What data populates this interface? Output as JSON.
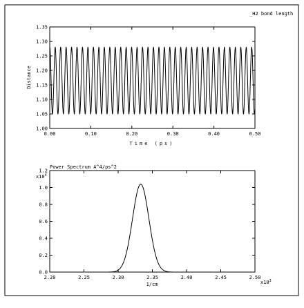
{
  "window_title": "_H2 bond length",
  "chart_data": [
    {
      "type": "line",
      "title": "",
      "xlabel": "Time (ps)",
      "ylabel": "Distance",
      "xlim": [
        0.0,
        0.5
      ],
      "ylim": [
        1.0,
        1.35
      ],
      "x_ticks": [
        "0.00",
        "0.10",
        "0.20",
        "0.30",
        "0.40",
        "0.50"
      ],
      "y_ticks": [
        "1.00",
        "1.05",
        "1.10",
        "1.15",
        "1.20",
        "1.25",
        "1.30",
        "1.35"
      ],
      "grid": false,
      "series": [
        {
          "model": "sinusoid",
          "mean": 1.165,
          "amplitude": 0.115,
          "period_ps": 0.0133,
          "x_start": 0.0,
          "x_end": 0.5,
          "values": []
        }
      ]
    },
    {
      "type": "line",
      "title": "Power Spectrum A^4/ps^2",
      "xlabel": "1/cm",
      "ylabel": "",
      "x_multiplier": "x10",
      "x_multiplier_exp": "3",
      "y_multiplier": "x10",
      "y_multiplier_exp": "4",
      "xlim": [
        2.2,
        2.5
      ],
      "ylim": [
        0.0,
        1.2
      ],
      "x_ticks": [
        "2.20",
        "2.25",
        "2.30",
        "2.35",
        "2.40",
        "2.45",
        "2.50"
      ],
      "y_ticks": [
        "0.0",
        "0.2",
        "0.4",
        "0.6",
        "0.8",
        "1.0",
        "1.2"
      ],
      "grid": false,
      "series": [
        {
          "model": "gaussian",
          "peak_x": 2.333,
          "peak_y": 1.04,
          "sigma": 0.012
        }
      ]
    }
  ]
}
